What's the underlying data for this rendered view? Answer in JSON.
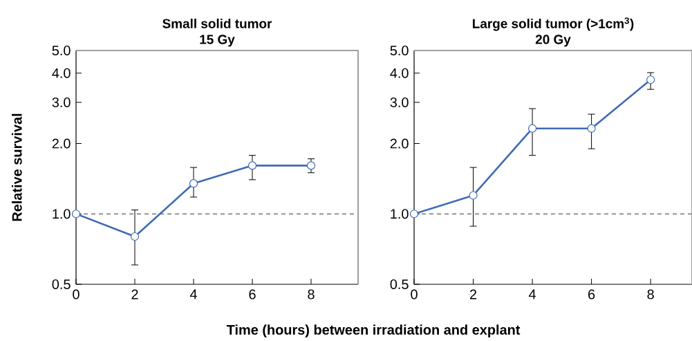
{
  "chart_data": [
    {
      "type": "line",
      "title": "Small solid tumor",
      "subtitle": "15 Gy",
      "xlabel": "Time (hours) between irradiation and explant",
      "ylabel": "Relative survival",
      "x": [
        0,
        2,
        4,
        6,
        8
      ],
      "series": [
        {
          "color": "#3f6ab5",
          "values": [
            1.0,
            0.8,
            1.35,
            1.61,
            1.61
          ],
          "errors": [
            null,
            [
              0.605,
              1.04
            ],
            [
              1.18,
              1.58
            ],
            [
              1.4,
              1.78
            ],
            [
              1.5,
              1.72
            ]
          ]
        }
      ],
      "xlim": [
        0,
        9.6
      ],
      "ylim": [
        0.5,
        5.0
      ],
      "log": "y",
      "xticks": [
        0,
        2,
        4,
        6,
        8
      ],
      "yticks": [
        {
          "value": 0.5,
          "label": "0.5"
        },
        {
          "value": 1,
          "label": "1.0"
        },
        {
          "value": 2,
          "label": "2.0"
        },
        {
          "value": 3,
          "label": "3.0"
        },
        {
          "value": 4,
          "label": "4.0"
        },
        {
          "value": 5,
          "label": "5.0"
        }
      ],
      "ref_lines": [
        {
          "axis": "y",
          "value": 1,
          "line_style": "dashed"
        }
      ],
      "marker": "circle",
      "line_style": "solid",
      "grid": false
    },
    {
      "type": "line",
      "title": "Large solid tumor (>1cm$^{3}$)",
      "subtitle": "20 Gy",
      "x": [
        0,
        2,
        4,
        6,
        8
      ],
      "series": [
        {
          "color": "#3f6ab5",
          "values": [
            1.0,
            1.2,
            2.32,
            2.32,
            3.75
          ],
          "errors": [
            null,
            [
              0.886,
              1.58
            ],
            [
              1.78,
              2.82
            ],
            [
              1.9,
              2.67
            ],
            [
              3.41,
              4.02
            ]
          ]
        }
      ],
      "xlim": [
        0,
        9.4
      ],
      "ylim": [
        0.5,
        5.0
      ],
      "log": "y",
      "xticks": [
        0,
        2,
        4,
        6,
        8
      ],
      "yticks": [
        {
          "value": 0.5,
          "label": "0.5"
        },
        {
          "value": 1,
          "label": "1.0"
        },
        {
          "value": 2,
          "label": "2.0"
        },
        {
          "value": 3,
          "label": "3.0"
        },
        {
          "value": 4,
          "label": "4.0"
        },
        {
          "value": 5,
          "label": "5.0"
        }
      ],
      "ref_lines": [
        {
          "axis": "y",
          "value": 1,
          "line_style": "dashed"
        }
      ],
      "marker": "circle",
      "line_style": "solid",
      "grid": false
    }
  ]
}
